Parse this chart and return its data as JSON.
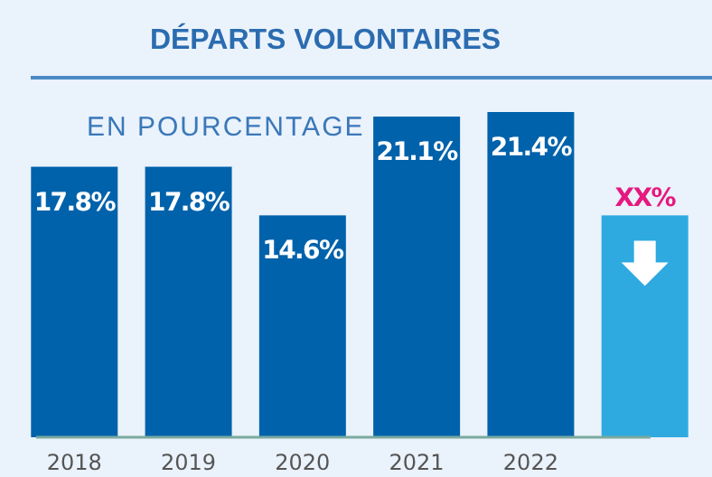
{
  "chart_data": {
    "type": "bar",
    "title": "DÉPARTS VOLONTAIRES",
    "subtitle": "EN POURCENTAGE",
    "categories": [
      "2018",
      "2019",
      "2020",
      "2021",
      "2022",
      null
    ],
    "values": [
      17.8,
      17.8,
      14.6,
      21.1,
      21.4,
      14.6
    ],
    "colors": [
      "#0062ab",
      "#0062ab",
      "#0062ab",
      "#0062ab",
      "#0062ab",
      "#2eaae1"
    ],
    "value_labels": [
      "17.8%",
      "17.8%",
      "14.6%",
      "21.1%",
      "21.4%",
      "XX%"
    ]
  }
}
